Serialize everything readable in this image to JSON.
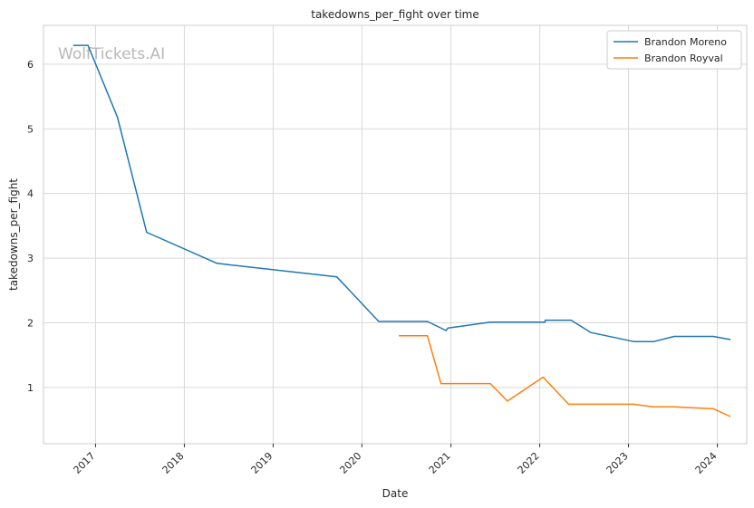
{
  "chart_data": {
    "type": "line",
    "title": "takedowns_per_fight over time",
    "xlabel": "Date",
    "ylabel": "takedowns_per_fight",
    "watermark": "WolfTickets.AI",
    "xlim": [
      "2016-06-01",
      "2024-05-01"
    ],
    "ylim": [
      0.13,
      6.6
    ],
    "grid": true,
    "legend_position": "top-right",
    "x_ticks": [
      {
        "date": "2017-01-01",
        "label": "2017"
      },
      {
        "date": "2018-01-01",
        "label": "2018"
      },
      {
        "date": "2019-01-01",
        "label": "2019"
      },
      {
        "date": "2020-01-01",
        "label": "2020"
      },
      {
        "date": "2021-01-01",
        "label": "2021"
      },
      {
        "date": "2022-01-01",
        "label": "2022"
      },
      {
        "date": "2023-01-01",
        "label": "2023"
      },
      {
        "date": "2024-01-01",
        "label": "2024"
      }
    ],
    "y_ticks": [
      {
        "value": 1,
        "label": "1"
      },
      {
        "value": 2,
        "label": "2"
      },
      {
        "value": 3,
        "label": "3"
      },
      {
        "value": 4,
        "label": "4"
      },
      {
        "value": 5,
        "label": "5"
      },
      {
        "value": 6,
        "label": "6"
      }
    ],
    "series": [
      {
        "name": "Brandon Moreno",
        "color": "#1f77b4",
        "points": [
          [
            "2016-10-01",
            6.29
          ],
          [
            "2016-12-01",
            6.29
          ],
          [
            "2017-04-01",
            5.18
          ],
          [
            "2017-07-30",
            3.4
          ],
          [
            "2018-05-15",
            2.92
          ],
          [
            "2019-09-20",
            2.71
          ],
          [
            "2020-03-10",
            2.02
          ],
          [
            "2020-09-26",
            2.02
          ],
          [
            "2020-12-12",
            1.88
          ],
          [
            "2020-12-20",
            1.92
          ],
          [
            "2021-06-12",
            2.01
          ],
          [
            "2022-01-22",
            2.01
          ],
          [
            "2022-01-24",
            2.04
          ],
          [
            "2022-05-10",
            2.04
          ],
          [
            "2022-07-30",
            1.85
          ],
          [
            "2023-01-22",
            1.71
          ],
          [
            "2023-04-15",
            1.71
          ],
          [
            "2023-07-08",
            1.79
          ],
          [
            "2023-12-15",
            1.79
          ],
          [
            "2024-02-24",
            1.74
          ]
        ]
      },
      {
        "name": "Brandon Royval",
        "color": "#ff7f0e",
        "points": [
          [
            "2020-06-01",
            1.8
          ],
          [
            "2020-09-26",
            1.8
          ],
          [
            "2020-11-21",
            1.06
          ],
          [
            "2021-06-12",
            1.06
          ],
          [
            "2021-08-21",
            0.79
          ],
          [
            "2022-01-15",
            1.16
          ],
          [
            "2022-04-30",
            0.74
          ],
          [
            "2023-01-21",
            0.74
          ],
          [
            "2023-04-10",
            0.7
          ],
          [
            "2023-07-01",
            0.7
          ],
          [
            "2023-12-16",
            0.67
          ],
          [
            "2024-02-24",
            0.55
          ]
        ]
      }
    ]
  }
}
